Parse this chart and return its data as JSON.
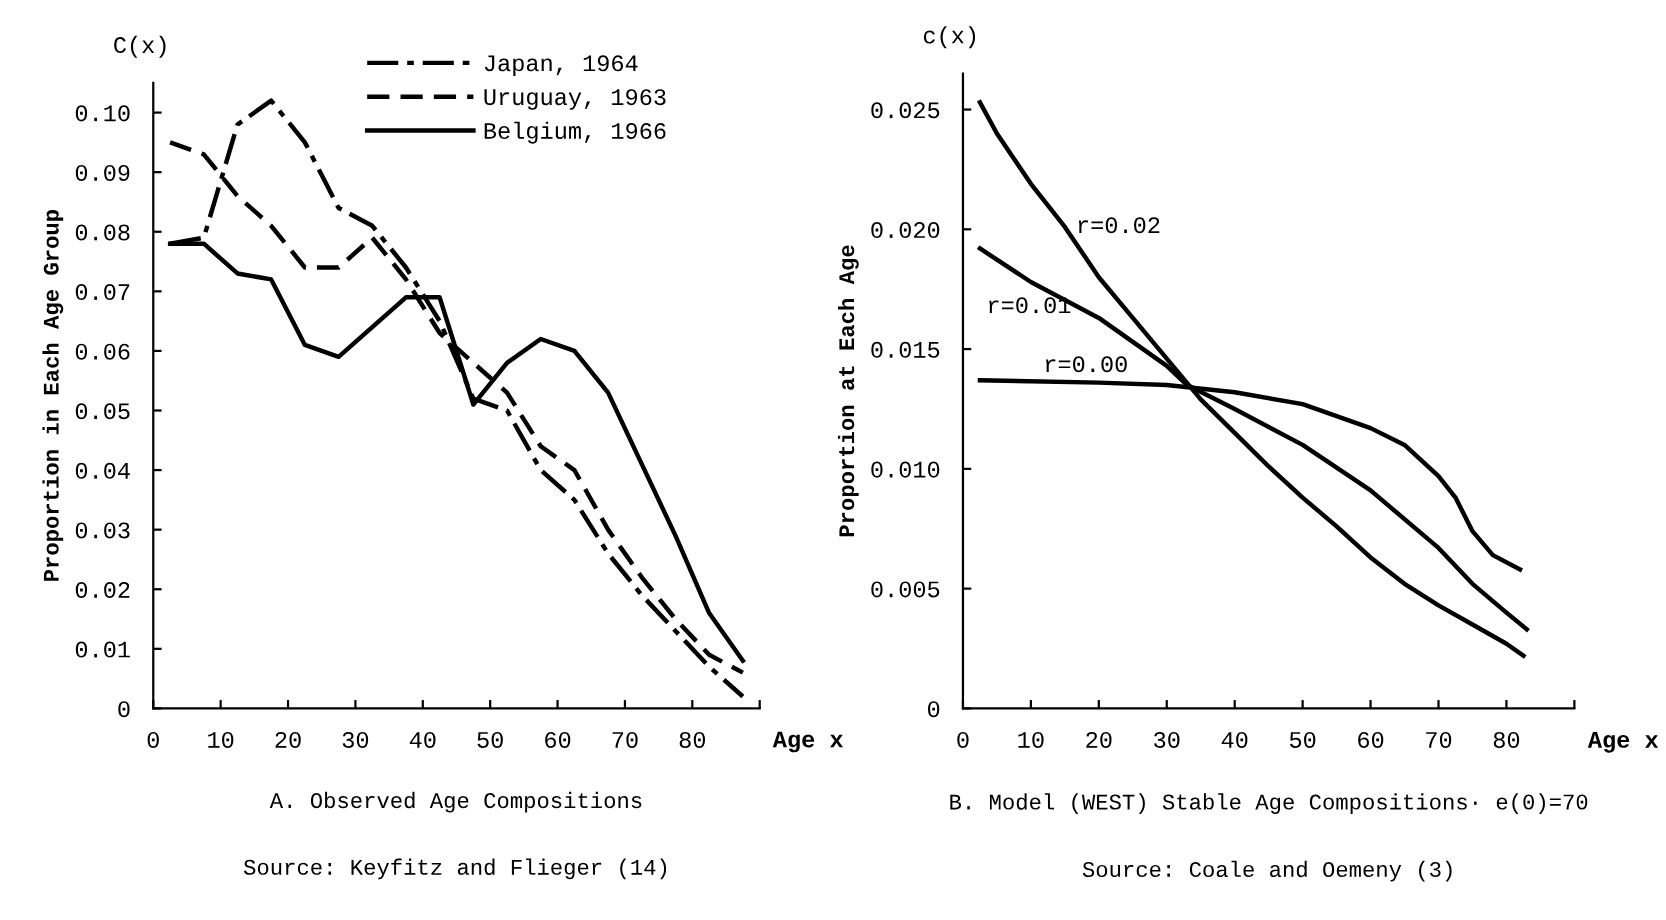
{
  "chart_data": [
    {
      "type": "line",
      "title": "A. Observed Age Compositions",
      "xlabel": "Age x",
      "ylabel": "Proportion in Each Age Group",
      "annotations": [
        "C(x)",
        "Source: Keyfitz and Flieger (14)"
      ],
      "x": [
        2.5,
        7.5,
        12.5,
        17.5,
        22.5,
        27.5,
        32.5,
        37.5,
        42.5,
        47.5,
        52.5,
        57.5,
        62.5,
        67.5,
        72.5,
        77.5,
        82.5,
        87.5
      ],
      "series": [
        {
          "name": "Japan, 1964",
          "color": "#000000",
          "line_style": "dashdot",
          "values": [
            0.078,
            0.079,
            0.098,
            0.102,
            0.095,
            0.084,
            0.081,
            0.074,
            0.065,
            0.052,
            0.05,
            0.04,
            0.035,
            0.026,
            0.019,
            0.013,
            0.007,
            0.002
          ]
        },
        {
          "name": "Uruguay, 1963",
          "color": "#000000",
          "line_style": "dashed",
          "values": [
            0.095,
            0.093,
            0.086,
            0.081,
            0.074,
            0.074,
            0.079,
            0.072,
            0.063,
            0.058,
            0.053,
            0.044,
            0.04,
            0.03,
            0.022,
            0.015,
            0.009,
            0.006
          ]
        },
        {
          "name": "Belgium, 1966",
          "color": "#000000",
          "line_style": "solid",
          "values": [
            0.078,
            0.078,
            0.073,
            0.072,
            0.061,
            0.059,
            0.064,
            0.069,
            0.069,
            0.051,
            0.058,
            0.062,
            0.06,
            0.053,
            0.041,
            0.029,
            0.016,
            0.008
          ]
        }
      ],
      "xlim": [
        0,
        90
      ],
      "xticks": [
        0,
        10,
        20,
        30,
        40,
        50,
        60,
        70,
        80,
        {
          "value": 90,
          "label": null
        }
      ],
      "ylim": [
        0,
        0.105
      ],
      "yticks": [
        0,
        0.01,
        0.02,
        0.03,
        0.04,
        0.05,
        0.06,
        0.07,
        0.08,
        0.09,
        {
          "value": 0.1,
          "label": "0.10"
        }
      ],
      "grid": false,
      "legend": "top",
      "marker": "none"
    },
    {
      "type": "line",
      "title": "B. Model (WEST) Stable Age Compositions· e(0)=70",
      "xlabel": "Age x",
      "ylabel": "Proportion at Each Age",
      "annotations": [
        "c(x)",
        "Source: Coale and Oemeny (3)"
      ],
      "series": [
        {
          "name": "r=0.02",
          "color": "#000000",
          "x": [
            2.5,
            5,
            10,
            15,
            20,
            25,
            30,
            35,
            40,
            45,
            50,
            55,
            60,
            65,
            70,
            75,
            80,
            82.5
          ],
          "values": [
            0.0253,
            0.024,
            0.0219,
            0.0201,
            0.018,
            0.0163,
            0.0146,
            0.0129,
            0.0115,
            0.0101,
            0.0088,
            0.0076,
            0.0063,
            0.0052,
            0.0043,
            0.0035,
            0.0027,
            0.0022
          ]
        },
        {
          "name": "r=0.01",
          "color": "#000000",
          "x": [
            2.5,
            10,
            20,
            30,
            33,
            40,
            50,
            60,
            70,
            75,
            80,
            83
          ],
          "values": [
            0.0192,
            0.0178,
            0.0163,
            0.0143,
            0.0135,
            0.0125,
            0.011,
            0.0091,
            0.0067,
            0.0052,
            0.004,
            0.0033
          ]
        },
        {
          "name": "r=0.00",
          "color": "#000000",
          "x": [
            2.5,
            20,
            30,
            40,
            50,
            60,
            65,
            70,
            72.5,
            75,
            78,
            82
          ],
          "values": [
            0.0137,
            0.0136,
            0.0135,
            0.0132,
            0.0127,
            0.0117,
            0.011,
            0.0097,
            0.0088,
            0.0074,
            0.0064,
            0.0058
          ]
        }
      ],
      "xlim": [
        0,
        90
      ],
      "xticks": [
        0,
        10,
        20,
        30,
        40,
        50,
        60,
        70,
        80,
        {
          "value": 90,
          "label": null
        }
      ],
      "ylim": [
        0,
        0.0265
      ],
      "yticks": [
        0,
        {
          "value": 0.005,
          "label": "0.005"
        },
        {
          "value": 0.01,
          "label": "0.010"
        },
        {
          "value": 0.015,
          "label": "0.015"
        },
        {
          "value": 0.02,
          "label": "0.020"
        },
        {
          "value": 0.025,
          "label": "0.025"
        }
      ],
      "grid": false,
      "legend": false,
      "marker": "none"
    }
  ]
}
